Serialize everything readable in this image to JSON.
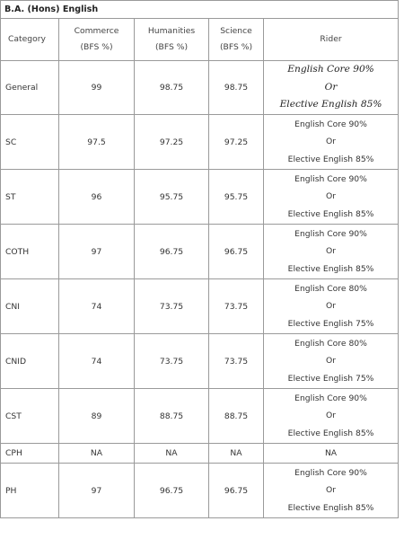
{
  "table": {
    "title": "B.A. (Hons) English",
    "headers": {
      "category": "Category",
      "commerce": [
        "Commerce",
        "(BFS %)"
      ],
      "humanities": [
        "Humanities",
        "(BFS %)"
      ],
      "science": [
        "Science",
        "(BFS %)"
      ],
      "rider": "Rider"
    },
    "rows": [
      {
        "category": "General",
        "commerce": "99",
        "humanities": "98.75",
        "science": "98.75",
        "rider": [
          "English Core 90%",
          "Or",
          "Elective English 85%"
        ]
      },
      {
        "category": "SC",
        "commerce": "97.5",
        "humanities": "97.25",
        "science": "97.25",
        "rider": [
          "English Core 90%",
          "Or",
          "Elective English 85%"
        ]
      },
      {
        "category": "ST",
        "commerce": "96",
        "humanities": "95.75",
        "science": "95.75",
        "rider": [
          "English Core 90%",
          "Or",
          "Elective English 85%"
        ]
      },
      {
        "category": "COTH",
        "commerce": "97",
        "humanities": "96.75",
        "science": "96.75",
        "rider": [
          "English Core 90%",
          "Or",
          "Elective English 85%"
        ]
      },
      {
        "category": "CNI",
        "commerce": "74",
        "humanities": "73.75",
        "science": "73.75",
        "rider": [
          "English Core 80%",
          "Or",
          "Elective English 75%"
        ]
      },
      {
        "category": "CNID",
        "commerce": "74",
        "humanities": "73.75",
        "science": "73.75",
        "rider": [
          "English Core 80%",
          "Or",
          "Elective English 75%"
        ]
      },
      {
        "category": "CST",
        "commerce": "89",
        "humanities": "88.75",
        "science": "88.75",
        "rider": [
          "English Core 90%",
          "Or",
          "Elective English 85%"
        ]
      },
      {
        "category": "CPH",
        "commerce": "NA",
        "humanities": "NA",
        "science": "NA",
        "rider": [
          "NA"
        ]
      },
      {
        "category": "PH",
        "commerce": "97",
        "humanities": "96.75",
        "science": "96.75",
        "rider": [
          "English Core 90%",
          "Or",
          "Elective English 85%"
        ]
      }
    ]
  }
}
